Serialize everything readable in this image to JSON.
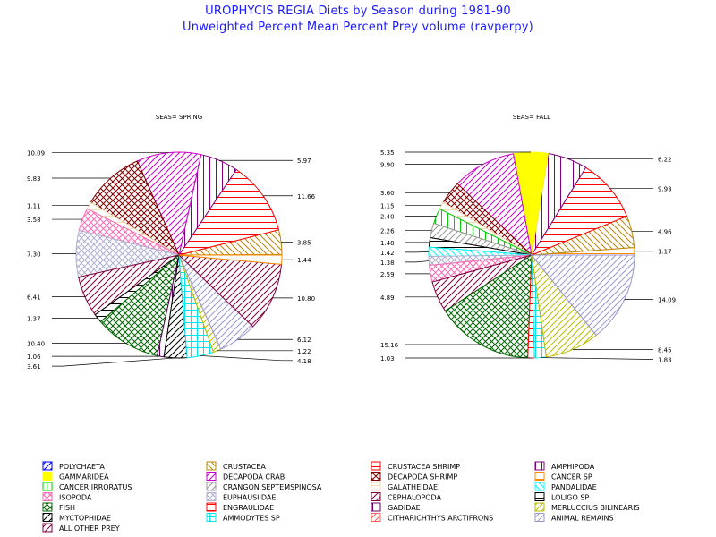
{
  "header": {
    "title": "UROPHYCIS REGIA Diets by Season during 1981-90",
    "subtitle": "Unweighted Percent Mean Percent Prey  volume (ravperpy)"
  },
  "chart_data": [
    {
      "type": "pie",
      "title": "SEAS= SPRING",
      "slices": [
        {
          "category": "POLYCHAETA",
          "value": 0.1,
          "label": ""
        },
        {
          "category": "CRUSTACEA",
          "value": 3.85,
          "label": "3.85"
        },
        {
          "category": "CRUSTACEA SHRIMP",
          "value": 11.66,
          "label": "11.66"
        },
        {
          "category": "AMPHIPODA",
          "value": 5.97,
          "label": "5.97"
        },
        {
          "category": "DECAPODA CRAB",
          "value": 10.09,
          "label": "10.09"
        },
        {
          "category": "DECAPODA SHRIMP",
          "value": 9.83,
          "label": "9.83"
        },
        {
          "category": "GALATHEIDAE",
          "value": 1.11,
          "label": "1.11"
        },
        {
          "category": "ISOPODA",
          "value": 3.58,
          "label": "3.58"
        },
        {
          "category": "EUPHAUSIIDAE",
          "value": 7.3,
          "label": "7.30"
        },
        {
          "category": "CEPHALOPODA",
          "value": 6.41,
          "label": "6.41"
        },
        {
          "category": "LOLIGO SP",
          "value": 1.37,
          "label": "1.37"
        },
        {
          "category": "FISH",
          "value": 10.4,
          "label": "10.40"
        },
        {
          "category": "GADIDAE",
          "value": 1.06,
          "label": "1.06"
        },
        {
          "category": "MYCTOPHIDAE",
          "value": 3.61,
          "label": "3.61"
        },
        {
          "category": "AMMODYTES SP",
          "value": 4.18,
          "label": "4.18"
        },
        {
          "category": "MERLUCCIUS BILINEARIS",
          "value": 1.22,
          "label": "1.22"
        },
        {
          "category": "ANIMAL REMAINS",
          "value": 6.12,
          "label": "6.12"
        },
        {
          "category": "ALL OTHER PREY",
          "value": 10.8,
          "label": "10.80"
        },
        {
          "category": "CANCER SP",
          "value": 1.44,
          "label": "1.44"
        }
      ]
    },
    {
      "type": "pie",
      "title": "SEAS= FALL",
      "slices": [
        {
          "category": "CANCER SP",
          "value": 1.17,
          "label": "1.17"
        },
        {
          "category": "CRUSTACEA",
          "value": 4.96,
          "label": "4.96"
        },
        {
          "category": "CRUSTACEA SHRIMP",
          "value": 9.93,
          "label": "9.93"
        },
        {
          "category": "AMPHIPODA",
          "value": 6.22,
          "label": "6.22"
        },
        {
          "category": "GAMMARIDEA",
          "value": 5.35,
          "label": "5.35"
        },
        {
          "category": "DECAPODA CRAB",
          "value": 9.9,
          "label": "9.90"
        },
        {
          "category": "DECAPODA SHRIMP",
          "value": 3.6,
          "label": "3.60"
        },
        {
          "category": "GALATHEIDAE",
          "value": 1.15,
          "label": "1.15"
        },
        {
          "category": "CANCER IRRORATUS",
          "value": 2.4,
          "label": "2.40"
        },
        {
          "category": "CRANGON SEPTEMSPINOSA",
          "value": 2.26,
          "label": "2.26"
        },
        {
          "category": "LOLIGO SP",
          "value": 1.48,
          "label": "1.48"
        },
        {
          "category": "PANDALIDAE",
          "value": 1.42,
          "label": "1.42"
        },
        {
          "category": "EUPHAUSIIDAE",
          "value": 1.38,
          "label": "1.38"
        },
        {
          "category": "ISOPODA",
          "value": 2.59,
          "label": "2.59"
        },
        {
          "category": "CEPHALOPODA",
          "value": 4.89,
          "label": "4.89"
        },
        {
          "category": "FISH",
          "value": 15.16,
          "label": "15.16"
        },
        {
          "category": "ENGRAULIDAE",
          "value": 1.03,
          "label": "1.03"
        },
        {
          "category": "AMMODYTES SP",
          "value": 1.83,
          "label": "1.83"
        },
        {
          "category": "MERLUCCIUS BILINEARIS",
          "value": 8.45,
          "label": "8.45"
        },
        {
          "category": "ANIMAL REMAINS",
          "value": 14.09,
          "label": "14.09"
        }
      ]
    }
  ],
  "legend": [
    {
      "name": "POLYCHAETA",
      "color": "#0000ff",
      "pattern": "hatch-ne"
    },
    {
      "name": "CRUSTACEA",
      "color": "#b8860b",
      "pattern": "hatch-se"
    },
    {
      "name": "CRUSTACEA SHRIMP",
      "color": "#ff0000",
      "pattern": "hatch-h"
    },
    {
      "name": "AMPHIPODA",
      "color": "#800080",
      "pattern": "hatch-v"
    },
    {
      "name": "GAMMARIDEA",
      "color": "#ffff00",
      "pattern": "solid"
    },
    {
      "name": "DECAPODA CRAB",
      "color": "#cc00cc",
      "pattern": "hatch-ne"
    },
    {
      "name": "DECAPODA SHRIMP",
      "color": "#800000",
      "pattern": "cross-diag"
    },
    {
      "name": "CANCER SP",
      "color": "#ff8c00",
      "pattern": "hatch-h"
    },
    {
      "name": "CANCER IRRORATUS",
      "color": "#00cc00",
      "pattern": "hatch-v"
    },
    {
      "name": "CRANGON SEPTEMSPINOSA",
      "color": "#999999",
      "pattern": "hatch-ne"
    },
    {
      "name": "GALATHEIDAE",
      "color": "#f5deb3",
      "pattern": "hatch-h"
    },
    {
      "name": "PANDALIDAE",
      "color": "#00ffff",
      "pattern": "hatch-se"
    },
    {
      "name": "ISOPODA",
      "color": "#ff69b4",
      "pattern": "cross-diag"
    },
    {
      "name": "EUPHAUSIIDAE",
      "color": "#b0b0d0",
      "pattern": "cross-diag"
    },
    {
      "name": "CEPHALOPODA",
      "color": "#800040",
      "pattern": "hatch-ne"
    },
    {
      "name": "LOLIGO SP",
      "color": "#000000",
      "pattern": "hatch-h"
    },
    {
      "name": "FISH",
      "color": "#006400",
      "pattern": "cross-diag"
    },
    {
      "name": "ENGRAULIDAE",
      "color": "#ff0000",
      "pattern": "hatch-h"
    },
    {
      "name": "GADIDAE",
      "color": "#660066",
      "pattern": "hatch-v"
    },
    {
      "name": "MERLUCCIUS BILINEARIS",
      "color": "#bbbb00",
      "pattern": "hatch-ne"
    },
    {
      "name": "MYCTOPHIDAE",
      "color": "#000000",
      "pattern": "hatch-ne"
    },
    {
      "name": "AMMODYTES SP",
      "color": "#00e5ee",
      "pattern": "cross-grid"
    },
    {
      "name": "CITHARICHTHYS ARCTIFRONS",
      "color": "#ff6060",
      "pattern": "hatch-ne"
    },
    {
      "name": "ANIMAL REMAINS",
      "color": "#9999cc",
      "pattern": "hatch-ne"
    },
    {
      "name": "ALL OTHER PREY",
      "color": "#800040",
      "pattern": "hatch-ne"
    }
  ]
}
